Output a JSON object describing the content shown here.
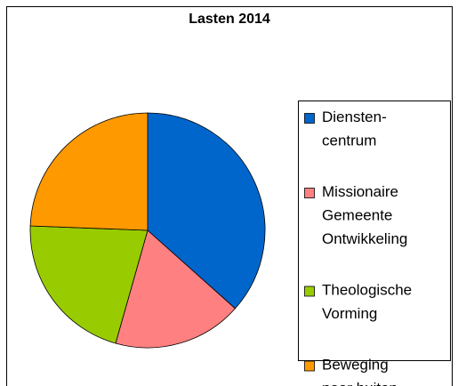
{
  "chart_data": {
    "type": "pie",
    "title": "Lasten 2014",
    "categories": [
      "Diensten-\ncentrum",
      "Missionaire\nGemeente\nOntwikkeling",
      "Theologische\nVorming",
      "Beweging\nnaar buiten"
    ],
    "values": [
      36.6,
      17.8,
      21.2,
      24.4
    ],
    "colors": [
      "#0066cc",
      "#ff8080",
      "#99cc00",
      "#ff9900"
    ],
    "legend": "right"
  }
}
